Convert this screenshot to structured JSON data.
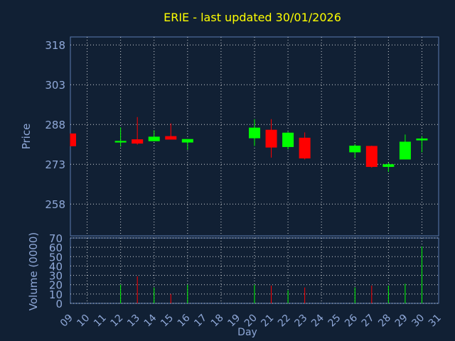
{
  "title": "ERIE - last updated 30/01/2026",
  "colors": {
    "background": "#112034",
    "title": "#ffff00",
    "axis_text": "#8fa8d8",
    "grid": "#ffffff",
    "up": "#00ff00",
    "down": "#ff0000"
  },
  "chart_data": [
    {
      "type": "candlestick",
      "ylabel": "Price",
      "ylim": [
        246,
        321
      ],
      "yticks": [
        258,
        273,
        288,
        303,
        318
      ],
      "grid": true,
      "candles": [
        {
          "day": "09",
          "open": 284.6,
          "high": 284.6,
          "low": 279.8,
          "close": 279.8
        },
        {
          "day": "12",
          "open": 281.2,
          "high": 286.9,
          "low": 279.6,
          "close": 281.8
        },
        {
          "day": "13",
          "open": 282.4,
          "high": 290.8,
          "low": 280.4,
          "close": 280.8
        },
        {
          "day": "14",
          "open": 281.7,
          "high": 285.8,
          "low": 281.7,
          "close": 283.4
        },
        {
          "day": "15",
          "open": 283.6,
          "high": 288.4,
          "low": 282.3,
          "close": 282.3
        },
        {
          "day": "16",
          "open": 281.2,
          "high": 282.5,
          "low": 278.4,
          "close": 282.5
        },
        {
          "day": "20",
          "open": 282.8,
          "high": 290.0,
          "low": 279.9,
          "close": 286.8
        },
        {
          "day": "21",
          "open": 286.0,
          "high": 290.0,
          "low": 275.5,
          "close": 279.3
        },
        {
          "day": "22",
          "open": 279.5,
          "high": 285.2,
          "low": 278.6,
          "close": 284.9
        },
        {
          "day": "23",
          "open": 283.0,
          "high": 285.0,
          "low": 274.8,
          "close": 275.2
        },
        {
          "day": "26",
          "open": 277.5,
          "high": 280.6,
          "low": 275.3,
          "close": 280.0
        },
        {
          "day": "27",
          "open": 279.9,
          "high": 280.0,
          "low": 271.7,
          "close": 272.0
        },
        {
          "day": "28",
          "open": 272.0,
          "high": 273.6,
          "low": 270.1,
          "close": 273.0
        },
        {
          "day": "29",
          "open": 274.8,
          "high": 284.2,
          "low": 274.8,
          "close": 281.5
        },
        {
          "day": "30",
          "open": 282.0,
          "high": 283.6,
          "low": 277.5,
          "close": 282.7
        }
      ]
    },
    {
      "type": "bar",
      "ylabel": "Volume (0000)",
      "xlabel": "Day",
      "ylim": [
        0,
        70
      ],
      "yticks": [
        0,
        10,
        20,
        30,
        40,
        50,
        60,
        70
      ],
      "xticks": [
        "09",
        "10",
        "11",
        "12",
        "13",
        "14",
        "15",
        "16",
        "17",
        "18",
        "19",
        "20",
        "21",
        "22",
        "23",
        "24",
        "25",
        "26",
        "27",
        "28",
        "29",
        "30",
        "31"
      ],
      "grid": true,
      "bars": [
        {
          "day": "09",
          "value": 0,
          "dir": "down"
        },
        {
          "day": "12",
          "value": 20,
          "dir": "up"
        },
        {
          "day": "13",
          "value": 29,
          "dir": "down"
        },
        {
          "day": "14",
          "value": 17,
          "dir": "up"
        },
        {
          "day": "15",
          "value": 10,
          "dir": "down"
        },
        {
          "day": "16",
          "value": 20,
          "dir": "up"
        },
        {
          "day": "20",
          "value": 20,
          "dir": "up"
        },
        {
          "day": "21",
          "value": 19,
          "dir": "down"
        },
        {
          "day": "22",
          "value": 14,
          "dir": "up"
        },
        {
          "day": "23",
          "value": 17,
          "dir": "down"
        },
        {
          "day": "26",
          "value": 17,
          "dir": "up"
        },
        {
          "day": "27",
          "value": 19,
          "dir": "down"
        },
        {
          "day": "28",
          "value": 19,
          "dir": "up"
        },
        {
          "day": "29",
          "value": 21,
          "dir": "up"
        },
        {
          "day": "30",
          "value": 61,
          "dir": "up"
        }
      ]
    }
  ]
}
